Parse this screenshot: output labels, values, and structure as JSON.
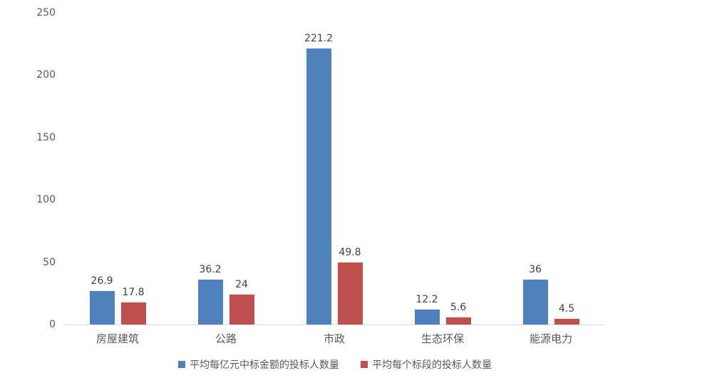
{
  "chart_data": {
    "type": "bar",
    "categories": [
      "房屋建筑",
      "公路",
      "市政",
      "生态环保",
      "能源电力"
    ],
    "series": [
      {
        "name": "平均每亿元中标金额的投标人数量",
        "color": "#4F81BD",
        "values": [
          26.9,
          36.2,
          221.2,
          12.2,
          36
        ]
      },
      {
        "name": "平均每个标段的投标人数量",
        "color": "#C0504D",
        "values": [
          17.8,
          24,
          49.8,
          5.6,
          4.5
        ]
      }
    ],
    "title": "",
    "xlabel": "",
    "ylabel": "",
    "ylim": [
      0,
      250
    ],
    "yticks": [
      0,
      50,
      100,
      150,
      200,
      250
    ],
    "grid": false,
    "legend_position": "bottom"
  },
  "colors": {
    "background": "#FFFFFF",
    "axis_text": "#595959",
    "value_label": "#404040",
    "axis_line": "#D9D9D9"
  }
}
